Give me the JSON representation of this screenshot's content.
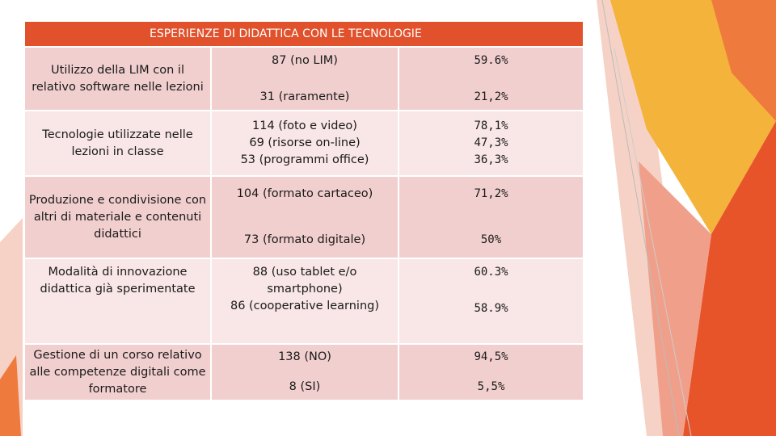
{
  "slide": {
    "theme_colors": {
      "header": "#e0512c",
      "row_dark": "#f2cfcf",
      "row_light": "#f9e6e6",
      "accent_orange": "#e8542a",
      "accent_yellow": "#f4b33a",
      "accent_peach": "#f4c6b8"
    }
  },
  "table": {
    "header": "ESPERIENZE DI DIDATTICA CON LE TECNOLOGIE",
    "rows": [
      {
        "label": "Utilizzo della LIM con il relativo software nelle lezioni",
        "counts": [
          "87 (no LIM)",
          "31 (raramente)"
        ],
        "percents": [
          "59.6%",
          "21,2%"
        ]
      },
      {
        "label": "Tecnologie utilizzate nelle lezioni in classe",
        "counts": [
          "114 (foto e video)",
          "69 (risorse on-line)",
          "53 (programmi office)"
        ],
        "percents": [
          "78,1%",
          "47,3%",
          "36,3%"
        ]
      },
      {
        "label": "Produzione e condivisione con altri di materiale e contenuti didattici",
        "counts": [
          "104 (formato cartaceo)",
          "73 (formato digitale)"
        ],
        "percents": [
          "71,2%",
          "50%"
        ]
      },
      {
        "label": "Modalità di innovazione didattica già sperimentate",
        "counts": [
          "88 (uso tablet e/o smartphone)",
          "86 (cooperative learning)"
        ],
        "percents": [
          "60.3%",
          "58.9%"
        ]
      },
      {
        "label": "Gestione di un corso relativo alle competenze digitali come formatore",
        "counts": [
          "138 (NO)",
          "8 (SI)"
        ],
        "percents": [
          "94,5%",
          "5,5%"
        ]
      }
    ]
  }
}
